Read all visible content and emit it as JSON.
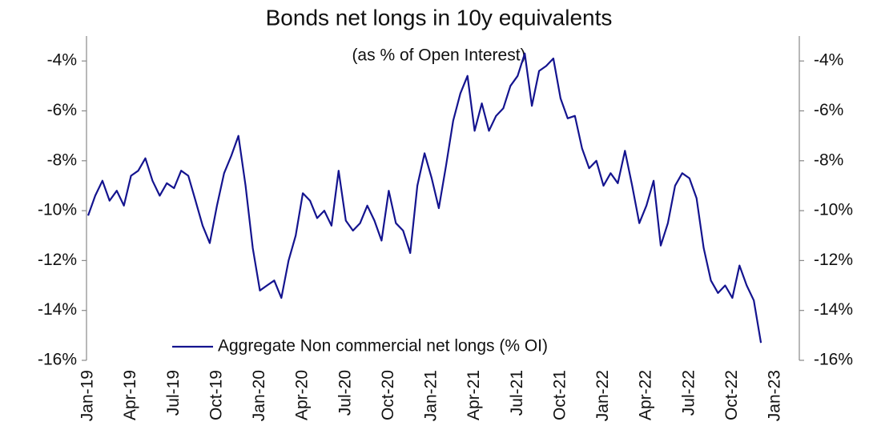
{
  "chart_data": {
    "type": "line",
    "title": "Bonds net longs in 10y equivalents",
    "subtitle": "(as % of Open Interest)",
    "categories": [
      "Jan-19",
      null,
      null,
      null,
      null,
      null,
      "Apr-19",
      null,
      null,
      null,
      null,
      null,
      "Jul-19",
      null,
      null,
      null,
      null,
      null,
      "Oct-19",
      null,
      null,
      null,
      null,
      null,
      "Jan-20",
      null,
      null,
      null,
      null,
      null,
      "Apr-20",
      null,
      null,
      null,
      null,
      null,
      "Jul-20",
      null,
      null,
      null,
      null,
      null,
      "Oct-20",
      null,
      null,
      null,
      null,
      null,
      "Jan-21",
      null,
      null,
      null,
      null,
      null,
      "Apr-21",
      null,
      null,
      null,
      null,
      null,
      "Jul-21",
      null,
      null,
      null,
      null,
      null,
      "Oct-21",
      null,
      null,
      null,
      null,
      null,
      "Jan-22",
      null,
      null,
      null,
      null,
      null,
      "Apr-22",
      null,
      null,
      null,
      null,
      null,
      "Jul-22",
      null,
      null,
      null,
      null,
      null,
      "Oct-22",
      null,
      null,
      null,
      null,
      null,
      "Jan-23"
    ],
    "series": [
      {
        "name": "Aggregate Non commercial net longs (% OI)",
        "color": "#14148f",
        "values": [
          -10.2,
          -9.4,
          -8.8,
          -9.6,
          -9.2,
          -9.8,
          -8.6,
          -8.4,
          -7.9,
          -8.8,
          -9.4,
          -8.9,
          -9.1,
          -8.4,
          -8.6,
          -9.6,
          -10.6,
          -11.3,
          -9.8,
          -8.5,
          -7.8,
          -7.0,
          -9.0,
          -11.5,
          -13.2,
          -13.0,
          -12.8,
          -13.5,
          -12.0,
          -11.0,
          -9.3,
          -9.6,
          -10.3,
          -10.0,
          -10.6,
          -8.4,
          -10.4,
          -10.8,
          -10.5,
          -9.8,
          -10.4,
          -11.2,
          -9.2,
          -10.5,
          -10.8,
          -11.7,
          -9.0,
          -7.7,
          -8.7,
          -9.9,
          -8.2,
          -6.4,
          -5.3,
          -4.6,
          -6.8,
          -5.7,
          -6.8,
          -6.2,
          -5.9,
          -5.0,
          -4.6,
          -3.7,
          -5.8,
          -4.4,
          -4.2,
          -3.9,
          -5.5,
          -6.3,
          -6.2,
          -7.5,
          -8.3,
          -8.0,
          -9.0,
          -8.5,
          -8.9,
          -7.6,
          -9.0,
          -10.5,
          -9.8,
          -8.8,
          -11.4,
          -10.5,
          -9.0,
          -8.5,
          -8.7,
          -9.5,
          -11.5,
          -12.8,
          -13.3,
          -13.0,
          -13.5,
          -12.2,
          -13.0,
          -13.6,
          -15.3,
          null,
          null
        ]
      }
    ],
    "ylim": [
      -16,
      -3
    ],
    "yticks": [
      {
        "value": -16,
        "label": "-16%"
      },
      {
        "value": -14,
        "label": "-14%"
      },
      {
        "value": -12,
        "label": "-12%"
      },
      {
        "value": -10,
        "label": "-10%"
      },
      {
        "value": -8,
        "label": "-8%"
      },
      {
        "value": -6,
        "label": "-6%"
      },
      {
        "value": -4,
        "label": "-4%"
      }
    ],
    "y2lim": [
      -16,
      -3
    ],
    "y2ticks": [
      {
        "value": -16,
        "label": "-16%"
      },
      {
        "value": -14,
        "label": "-14%"
      },
      {
        "value": -12,
        "label": "-12%"
      },
      {
        "value": -10,
        "label": "-10%"
      },
      {
        "value": -8,
        "label": "-8%"
      },
      {
        "value": -6,
        "label": "-6%"
      },
      {
        "value": -4,
        "label": "-4%"
      }
    ],
    "legend": "lower center",
    "grid": false
  }
}
